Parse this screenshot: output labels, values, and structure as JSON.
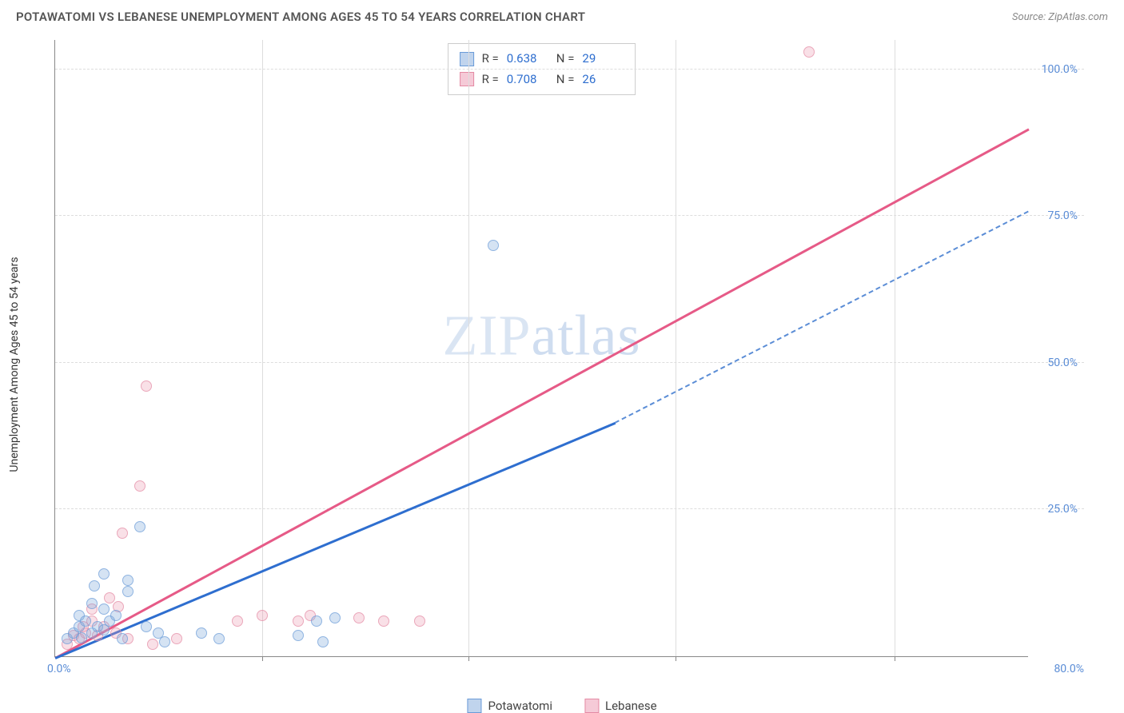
{
  "header": {
    "title": "POTAWATOMI VS LEBANESE UNEMPLOYMENT AMONG AGES 45 TO 54 YEARS CORRELATION CHART",
    "source": "Source: ZipAtlas.com"
  },
  "chart": {
    "type": "scatter",
    "y_axis_label": "Unemployment Among Ages 45 to 54 years",
    "xlim": [
      0,
      80
    ],
    "ylim": [
      0,
      105
    ],
    "y_ticks": [
      25,
      50,
      75,
      100
    ],
    "y_tick_labels": [
      "25.0%",
      "50.0%",
      "75.0%",
      "100.0%"
    ],
    "x_origin_label": "0.0%",
    "x_end_label": "80.0%",
    "x_grid_positions": [
      17,
      34,
      51,
      69
    ],
    "background_color": "#ffffff",
    "grid_color": "#dddddd",
    "series_a": {
      "name": "Potawatomi",
      "color_fill": "rgba(130,170,220,0.45)",
      "color_stroke": "#6a9bd8",
      "trend_color": "#2e6ecf",
      "R": "0.638",
      "N": "29",
      "points": [
        [
          1,
          3
        ],
        [
          1.5,
          4
        ],
        [
          2,
          5
        ],
        [
          2,
          7
        ],
        [
          2.2,
          3.2
        ],
        [
          2.5,
          6
        ],
        [
          3,
          4
        ],
        [
          3,
          9
        ],
        [
          3.2,
          12
        ],
        [
          3.5,
          5
        ],
        [
          4,
          4.5
        ],
        [
          4,
          8
        ],
        [
          4,
          14
        ],
        [
          4.5,
          6
        ],
        [
          5,
          7
        ],
        [
          5.5,
          3
        ],
        [
          6,
          11
        ],
        [
          6,
          13
        ],
        [
          7,
          22
        ],
        [
          7.5,
          5
        ],
        [
          8.5,
          4
        ],
        [
          9,
          2.5
        ],
        [
          12,
          4
        ],
        [
          13.5,
          3
        ],
        [
          20,
          3.5
        ],
        [
          22,
          2.5
        ],
        [
          21.5,
          6
        ],
        [
          23,
          6.5
        ],
        [
          36,
          70
        ]
      ],
      "trend": {
        "x1": 0,
        "y1": 0,
        "x2": 46,
        "y2": 40,
        "dash_x2": 80,
        "dash_y2": 76
      }
    },
    "series_b": {
      "name": "Lebanese",
      "color_fill": "rgba(235,150,175,0.40)",
      "color_stroke": "#e48aa4",
      "trend_color": "#e65a87",
      "R": "0.708",
      "N": "26",
      "points": [
        [
          1,
          2
        ],
        [
          1.5,
          3.5
        ],
        [
          2,
          3
        ],
        [
          2.3,
          5
        ],
        [
          2.5,
          4
        ],
        [
          3,
          6
        ],
        [
          3,
          8
        ],
        [
          3.5,
          3.5
        ],
        [
          4,
          5
        ],
        [
          4.5,
          10
        ],
        [
          5,
          4
        ],
        [
          5.2,
          8.5
        ],
        [
          5.5,
          21
        ],
        [
          6,
          3
        ],
        [
          7,
          29
        ],
        [
          7.5,
          46
        ],
        [
          8,
          2
        ],
        [
          10,
          3
        ],
        [
          15,
          6
        ],
        [
          17,
          7
        ],
        [
          20,
          6
        ],
        [
          21,
          7
        ],
        [
          25,
          6.5
        ],
        [
          27,
          6
        ],
        [
          30,
          6
        ],
        [
          62,
          103
        ]
      ],
      "trend": {
        "x1": 0,
        "y1": 0,
        "x2": 80,
        "y2": 90
      }
    },
    "watermark": "ZIPatlas",
    "legend": {
      "a_label": "Potawatomi",
      "b_label": "Lebanese"
    },
    "stats_box": {
      "r_label": "R =",
      "n_label": "N ="
    }
  }
}
